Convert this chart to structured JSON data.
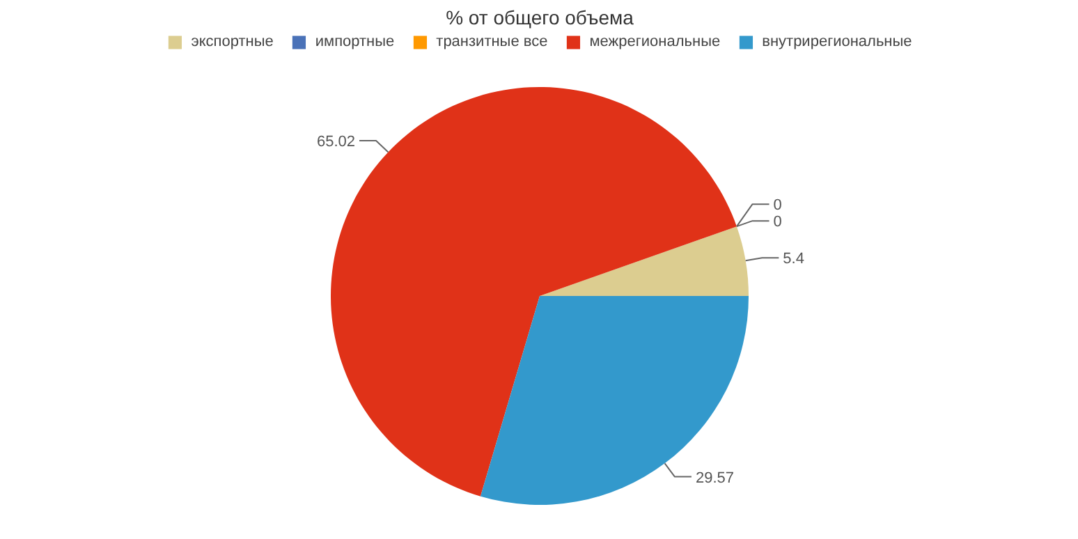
{
  "chart_data": {
    "type": "pie",
    "title": "% от общего объема",
    "categories": [
      "экспортные",
      "импортные",
      "транзитные все",
      "межрегиональные",
      "внутрирегиональные"
    ],
    "values": [
      5.4,
      0,
      0,
      65.02,
      29.57
    ],
    "colors": [
      "#dccd90",
      "#4a72b8",
      "#ff9900",
      "#e03218",
      "#3399cc"
    ],
    "value_labels": [
      "5.4",
      "0",
      "0",
      "65.02",
      "29.57"
    ],
    "legend": "top"
  }
}
